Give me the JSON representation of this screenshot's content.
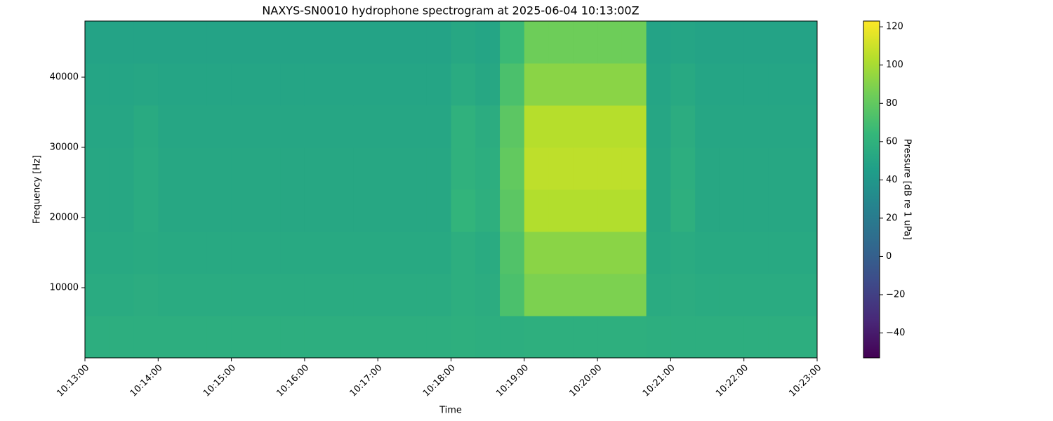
{
  "chart_data": {
    "type": "heatmap",
    "title": "NAXYS-SN0010 hydrophone spectrogram at 2025-06-04 10:13:00Z",
    "xlabel": "Time",
    "ylabel": "Frequency [Hz]",
    "colorbar_label": "Pressure [dB re 1 uPa]",
    "colormap": "viridis",
    "x_bins": [
      36780,
      36800,
      36820,
      36840,
      36860,
      36880,
      36900,
      36920,
      36940,
      36960,
      36980,
      37000,
      37020,
      37040,
      37060,
      37080,
      37100,
      37120,
      37140,
      37160,
      37180,
      37200,
      37220,
      37240,
      37260,
      37280,
      37300,
      37320,
      37340,
      37360,
      37380
    ],
    "y_bins": [
      0,
      6000,
      12000,
      18000,
      24000,
      30000,
      36000,
      42000,
      48000
    ],
    "values": [
      [
        57,
        57,
        57,
        57,
        57,
        57,
        57,
        57,
        57,
        57,
        57,
        57,
        57,
        57,
        57,
        58,
        57,
        57,
        58,
        58,
        58,
        58,
        58,
        57,
        57,
        57,
        57,
        57,
        57,
        57
      ],
      [
        55,
        55,
        56,
        55,
        55,
        55,
        55,
        55,
        55,
        55,
        55,
        55,
        55,
        55,
        55,
        57,
        56,
        72,
        88,
        88,
        88,
        88,
        88,
        55,
        56,
        55,
        55,
        55,
        55,
        55
      ],
      [
        53,
        53,
        54,
        53,
        53,
        53,
        53,
        53,
        53,
        53,
        53,
        53,
        53,
        53,
        53,
        57,
        55,
        74,
        92,
        92,
        92,
        92,
        92,
        53,
        55,
        53,
        53,
        53,
        53,
        53
      ],
      [
        52,
        52,
        55,
        52,
        52,
        52,
        52,
        52,
        52,
        52,
        52,
        52,
        52,
        52,
        52,
        62,
        58,
        78,
        103,
        103,
        103,
        103,
        103,
        52,
        58,
        52,
        52,
        52,
        52,
        52
      ],
      [
        52,
        52,
        55,
        52,
        52,
        52,
        52,
        52,
        52,
        52,
        52,
        52,
        52,
        52,
        52,
        60,
        57,
        80,
        106,
        106,
        106,
        106,
        106,
        52,
        57,
        52,
        52,
        52,
        52,
        52
      ],
      [
        51,
        51,
        54,
        51,
        51,
        51,
        51,
        51,
        51,
        51,
        51,
        51,
        51,
        51,
        51,
        60,
        56,
        78,
        104,
        104,
        104,
        104,
        104,
        51,
        56,
        51,
        51,
        51,
        51,
        51
      ],
      [
        50,
        50,
        51,
        50,
        50,
        50,
        50,
        50,
        50,
        50,
        50,
        50,
        50,
        50,
        50,
        55,
        52,
        72,
        92,
        92,
        92,
        92,
        92,
        50,
        53,
        50,
        50,
        50,
        50,
        50
      ],
      [
        49,
        49,
        49,
        49,
        49,
        49,
        49,
        49,
        49,
        49,
        49,
        49,
        49,
        49,
        49,
        52,
        50,
        66,
        84,
        84,
        84,
        84,
        84,
        49,
        50,
        49,
        49,
        49,
        49,
        49
      ]
    ],
    "xlim": [
      36780,
      37380
    ],
    "xticks": [
      {
        "value": 36780,
        "label": "10:13:00"
      },
      {
        "value": 36840,
        "label": "10:14:00"
      },
      {
        "value": 36900,
        "label": "10:15:00"
      },
      {
        "value": 36960,
        "label": "10:16:00"
      },
      {
        "value": 37020,
        "label": "10:17:00"
      },
      {
        "value": 37080,
        "label": "10:18:00"
      },
      {
        "value": 37140,
        "label": "10:19:00"
      },
      {
        "value": 37200,
        "label": "10:20:00"
      },
      {
        "value": 37260,
        "label": "10:21:00"
      },
      {
        "value": 37320,
        "label": "10:22:00"
      },
      {
        "value": 37380,
        "label": "10:23:00"
      }
    ],
    "ylim": [
      0,
      48000
    ],
    "yticks": [
      10000,
      20000,
      30000,
      40000
    ],
    "clim": [
      -53,
      123
    ],
    "cticks": [
      {
        "value": -40,
        "label": "−40"
      },
      {
        "value": -20,
        "label": "−20"
      },
      0,
      20,
      40,
      60,
      80,
      100,
      120
    ]
  }
}
